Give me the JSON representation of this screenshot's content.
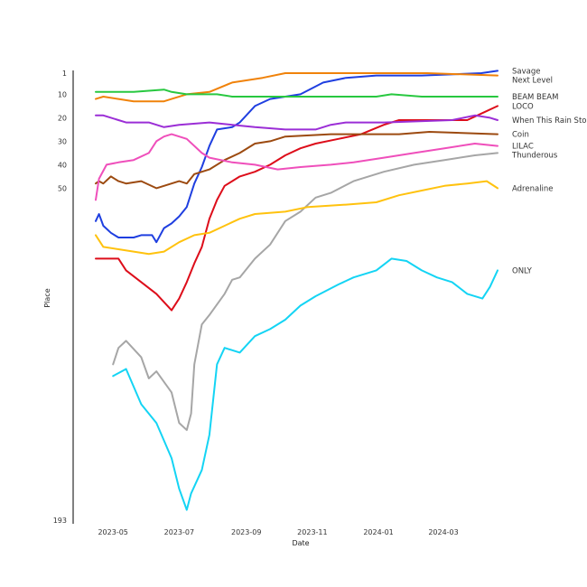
{
  "chart_data": {
    "type": "line",
    "title": "",
    "xlabel": "Date",
    "ylabel": "Place",
    "x_axis": {
      "type": "date",
      "range": [
        "2023-04-15",
        "2024-04-30"
      ],
      "ticks": [
        {
          "date": "2023-05-01",
          "label": "2023-05"
        },
        {
          "date": "2023-07-01",
          "label": "2023-07"
        },
        {
          "date": "2023-09-01",
          "label": "2023-09"
        },
        {
          "date": "2023-11-01",
          "label": "2023-11"
        },
        {
          "date": "2024-01-01",
          "label": "2024-01"
        },
        {
          "date": "2024-03-01",
          "label": "2024-03"
        }
      ]
    },
    "y_axis": {
      "range": [
        1,
        193
      ],
      "inverted": true,
      "ticks": [
        1,
        10,
        20,
        30,
        40,
        50,
        193
      ]
    },
    "grid": false,
    "legend": "labels at line ends",
    "series": [
      {
        "name": "Savage",
        "color": "#1f3fe0",
        "points": [
          [
            "2023-04-15",
            64
          ],
          [
            "2023-04-18",
            61
          ],
          [
            "2023-04-22",
            66
          ],
          [
            "2023-04-29",
            69
          ],
          [
            "2023-05-06",
            71
          ],
          [
            "2023-05-20",
            71
          ],
          [
            "2023-05-27",
            70
          ],
          [
            "2023-06-06",
            70
          ],
          [
            "2023-06-10",
            73
          ],
          [
            "2023-06-17",
            67
          ],
          [
            "2023-06-24",
            65
          ],
          [
            "2023-07-01",
            62
          ],
          [
            "2023-07-08",
            58
          ],
          [
            "2023-07-15",
            48
          ],
          [
            "2023-07-22",
            41
          ],
          [
            "2023-07-29",
            32
          ],
          [
            "2023-08-05",
            25
          ],
          [
            "2023-08-19",
            24
          ],
          [
            "2023-08-26",
            22
          ],
          [
            "2023-09-09",
            15
          ],
          [
            "2023-09-23",
            12
          ],
          [
            "2023-10-21",
            10
          ],
          [
            "2023-11-11",
            5
          ],
          [
            "2023-12-02",
            3
          ],
          [
            "2023-12-30",
            2
          ],
          [
            "2024-02-10",
            2
          ],
          [
            "2024-04-05",
            1
          ],
          [
            "2024-04-20",
            0
          ]
        ]
      },
      {
        "name": "Next Level",
        "color": "#f0820a",
        "points": [
          [
            "2023-04-15",
            12
          ],
          [
            "2023-04-22",
            11
          ],
          [
            "2023-05-06",
            12
          ],
          [
            "2023-05-20",
            13
          ],
          [
            "2023-06-17",
            13
          ],
          [
            "2023-06-24",
            12
          ],
          [
            "2023-07-08",
            10
          ],
          [
            "2023-07-29",
            9
          ],
          [
            "2023-08-19",
            5
          ],
          [
            "2023-09-16",
            3
          ],
          [
            "2023-10-07",
            1
          ],
          [
            "2024-02-15",
            1
          ],
          [
            "2024-04-20",
            2
          ]
        ]
      },
      {
        "name": "BEAM BEAM",
        "color": "#28c840",
        "points": [
          [
            "2023-04-15",
            9
          ],
          [
            "2023-05-20",
            9
          ],
          [
            "2023-06-17",
            8
          ],
          [
            "2023-06-24",
            9
          ],
          [
            "2023-07-08",
            10
          ],
          [
            "2023-08-05",
            10
          ],
          [
            "2023-08-19",
            11
          ],
          [
            "2023-11-11",
            11
          ],
          [
            "2023-12-30",
            11
          ],
          [
            "2024-01-13",
            10
          ],
          [
            "2024-02-10",
            11
          ],
          [
            "2024-04-20",
            11
          ]
        ]
      },
      {
        "name": "LOCO",
        "color": "#dd0d1a",
        "points": [
          [
            "2023-04-15",
            80
          ],
          [
            "2023-05-06",
            80
          ],
          [
            "2023-05-13",
            85
          ],
          [
            "2023-05-27",
            90
          ],
          [
            "2023-06-10",
            95
          ],
          [
            "2023-06-24",
            102
          ],
          [
            "2023-07-01",
            97
          ],
          [
            "2023-07-08",
            90
          ],
          [
            "2023-07-15",
            82
          ],
          [
            "2023-07-22",
            75
          ],
          [
            "2023-07-29",
            63
          ],
          [
            "2023-08-05",
            55
          ],
          [
            "2023-08-12",
            49
          ],
          [
            "2023-08-26",
            45
          ],
          [
            "2023-09-09",
            43
          ],
          [
            "2023-09-23",
            40
          ],
          [
            "2023-10-07",
            36
          ],
          [
            "2023-10-21",
            33
          ],
          [
            "2023-11-04",
            31
          ],
          [
            "2023-11-25",
            29
          ],
          [
            "2023-12-16",
            27
          ],
          [
            "2024-01-06",
            23
          ],
          [
            "2024-01-20",
            21
          ],
          [
            "2024-02-03",
            21
          ],
          [
            "2024-03-23",
            21
          ],
          [
            "2024-04-06",
            18
          ],
          [
            "2024-04-20",
            15
          ]
        ]
      },
      {
        "name": "When This Rain Stops",
        "color": "#9b2ed6",
        "points": [
          [
            "2023-04-15",
            19
          ],
          [
            "2023-04-22",
            19
          ],
          [
            "2023-05-06",
            21
          ],
          [
            "2023-05-13",
            22
          ],
          [
            "2023-06-03",
            22
          ],
          [
            "2023-06-17",
            24
          ],
          [
            "2023-07-01",
            23
          ],
          [
            "2023-07-29",
            22
          ],
          [
            "2023-08-19",
            23
          ],
          [
            "2023-09-09",
            24
          ],
          [
            "2023-10-07",
            25
          ],
          [
            "2023-11-04",
            25
          ],
          [
            "2023-11-18",
            23
          ],
          [
            "2023-12-02",
            22
          ],
          [
            "2024-01-06",
            22
          ],
          [
            "2024-03-09",
            21
          ],
          [
            "2024-03-30",
            19
          ],
          [
            "2024-04-13",
            20
          ],
          [
            "2024-04-20",
            21
          ]
        ]
      },
      {
        "name": "Coin",
        "color": "#9c4a10",
        "points": [
          [
            "2023-04-15",
            48
          ],
          [
            "2023-04-18",
            47
          ],
          [
            "2023-04-22",
            48
          ],
          [
            "2023-04-29",
            45
          ],
          [
            "2023-05-06",
            47
          ],
          [
            "2023-05-13",
            48
          ],
          [
            "2023-05-27",
            47
          ],
          [
            "2023-06-10",
            50
          ],
          [
            "2023-06-24",
            48
          ],
          [
            "2023-07-01",
            47
          ],
          [
            "2023-07-08",
            48
          ],
          [
            "2023-07-15",
            44
          ],
          [
            "2023-07-29",
            42
          ],
          [
            "2023-08-12",
            38
          ],
          [
            "2023-08-26",
            35
          ],
          [
            "2023-09-09",
            31
          ],
          [
            "2023-09-23",
            30
          ],
          [
            "2023-10-07",
            28
          ],
          [
            "2023-11-18",
            27
          ],
          [
            "2024-01-20",
            27
          ],
          [
            "2024-02-17",
            26
          ],
          [
            "2024-04-20",
            27
          ]
        ]
      },
      {
        "name": "LILAC",
        "color": "#ef4fbb",
        "points": [
          [
            "2023-04-15",
            55
          ],
          [
            "2023-04-18",
            46
          ],
          [
            "2023-04-25",
            40
          ],
          [
            "2023-05-06",
            39
          ],
          [
            "2023-05-20",
            38
          ],
          [
            "2023-06-03",
            35
          ],
          [
            "2023-06-10",
            30
          ],
          [
            "2023-06-17",
            28
          ],
          [
            "2023-06-24",
            27
          ],
          [
            "2023-07-08",
            29
          ],
          [
            "2023-07-22",
            35
          ],
          [
            "2023-07-29",
            37
          ],
          [
            "2023-08-19",
            39
          ],
          [
            "2023-09-09",
            40
          ],
          [
            "2023-09-30",
            42
          ],
          [
            "2023-10-21",
            41
          ],
          [
            "2023-11-18",
            40
          ],
          [
            "2023-12-09",
            39
          ],
          [
            "2024-01-06",
            37
          ],
          [
            "2024-02-03",
            35
          ],
          [
            "2024-03-02",
            33
          ],
          [
            "2024-03-30",
            31
          ],
          [
            "2024-04-20",
            32
          ]
        ]
      },
      {
        "name": "Thunderous",
        "color": "#a6a6a6",
        "points": [
          [
            "2023-05-01",
            125
          ],
          [
            "2023-05-06",
            118
          ],
          [
            "2023-05-13",
            115
          ],
          [
            "2023-05-27",
            122
          ],
          [
            "2023-06-03",
            131
          ],
          [
            "2023-06-10",
            128
          ],
          [
            "2023-06-24",
            137
          ],
          [
            "2023-07-01",
            150
          ],
          [
            "2023-07-08",
            153
          ],
          [
            "2023-07-12",
            146
          ],
          [
            "2023-07-15",
            125
          ],
          [
            "2023-07-22",
            108
          ],
          [
            "2023-07-29",
            104
          ],
          [
            "2023-08-12",
            95
          ],
          [
            "2023-08-19",
            89
          ],
          [
            "2023-08-26",
            88
          ],
          [
            "2023-09-09",
            80
          ],
          [
            "2023-09-23",
            74
          ],
          [
            "2023-10-07",
            64
          ],
          [
            "2023-10-21",
            60
          ],
          [
            "2023-11-04",
            54
          ],
          [
            "2023-11-18",
            52
          ],
          [
            "2023-12-09",
            47
          ],
          [
            "2024-01-06",
            43
          ],
          [
            "2024-02-03",
            40
          ],
          [
            "2024-03-02",
            38
          ],
          [
            "2024-03-30",
            36
          ],
          [
            "2024-04-20",
            35
          ]
        ]
      },
      {
        "name": "Adrenaline",
        "color": "#ffc20e",
        "points": [
          [
            "2023-04-15",
            70
          ],
          [
            "2023-04-22",
            75
          ],
          [
            "2023-05-06",
            76
          ],
          [
            "2023-05-20",
            77
          ],
          [
            "2023-06-03",
            78
          ],
          [
            "2023-06-17",
            77
          ],
          [
            "2023-07-01",
            73
          ],
          [
            "2023-07-15",
            70
          ],
          [
            "2023-07-29",
            69
          ],
          [
            "2023-08-12",
            66
          ],
          [
            "2023-08-26",
            63
          ],
          [
            "2023-09-09",
            61
          ],
          [
            "2023-10-07",
            60
          ],
          [
            "2023-10-28",
            58
          ],
          [
            "2023-12-02",
            57
          ],
          [
            "2023-12-30",
            56
          ],
          [
            "2024-01-20",
            53
          ],
          [
            "2024-02-10",
            51
          ],
          [
            "2024-03-02",
            49
          ],
          [
            "2024-03-23",
            48
          ],
          [
            "2024-04-10",
            47
          ],
          [
            "2024-04-20",
            50
          ]
        ]
      },
      {
        "name": "ONLY",
        "color": "#14d4f4",
        "points": [
          [
            "2023-05-01",
            130
          ],
          [
            "2023-05-13",
            127
          ],
          [
            "2023-05-27",
            142
          ],
          [
            "2023-06-10",
            150
          ],
          [
            "2023-06-24",
            165
          ],
          [
            "2023-07-01",
            178
          ],
          [
            "2023-07-08",
            187
          ],
          [
            "2023-07-12",
            180
          ],
          [
            "2023-07-22",
            170
          ],
          [
            "2023-07-29",
            155
          ],
          [
            "2023-08-05",
            125
          ],
          [
            "2023-08-12",
            118
          ],
          [
            "2023-08-26",
            120
          ],
          [
            "2023-09-09",
            113
          ],
          [
            "2023-09-23",
            110
          ],
          [
            "2023-10-07",
            106
          ],
          [
            "2023-10-21",
            100
          ],
          [
            "2023-11-04",
            96
          ],
          [
            "2023-11-25",
            91
          ],
          [
            "2023-12-09",
            88
          ],
          [
            "2023-12-30",
            85
          ],
          [
            "2024-01-13",
            80
          ],
          [
            "2024-01-27",
            81
          ],
          [
            "2024-02-10",
            85
          ],
          [
            "2024-02-24",
            88
          ],
          [
            "2024-03-09",
            90
          ],
          [
            "2024-03-23",
            95
          ],
          [
            "2024-04-06",
            97
          ],
          [
            "2024-04-13",
            92
          ],
          [
            "2024-04-20",
            85
          ]
        ]
      }
    ]
  }
}
